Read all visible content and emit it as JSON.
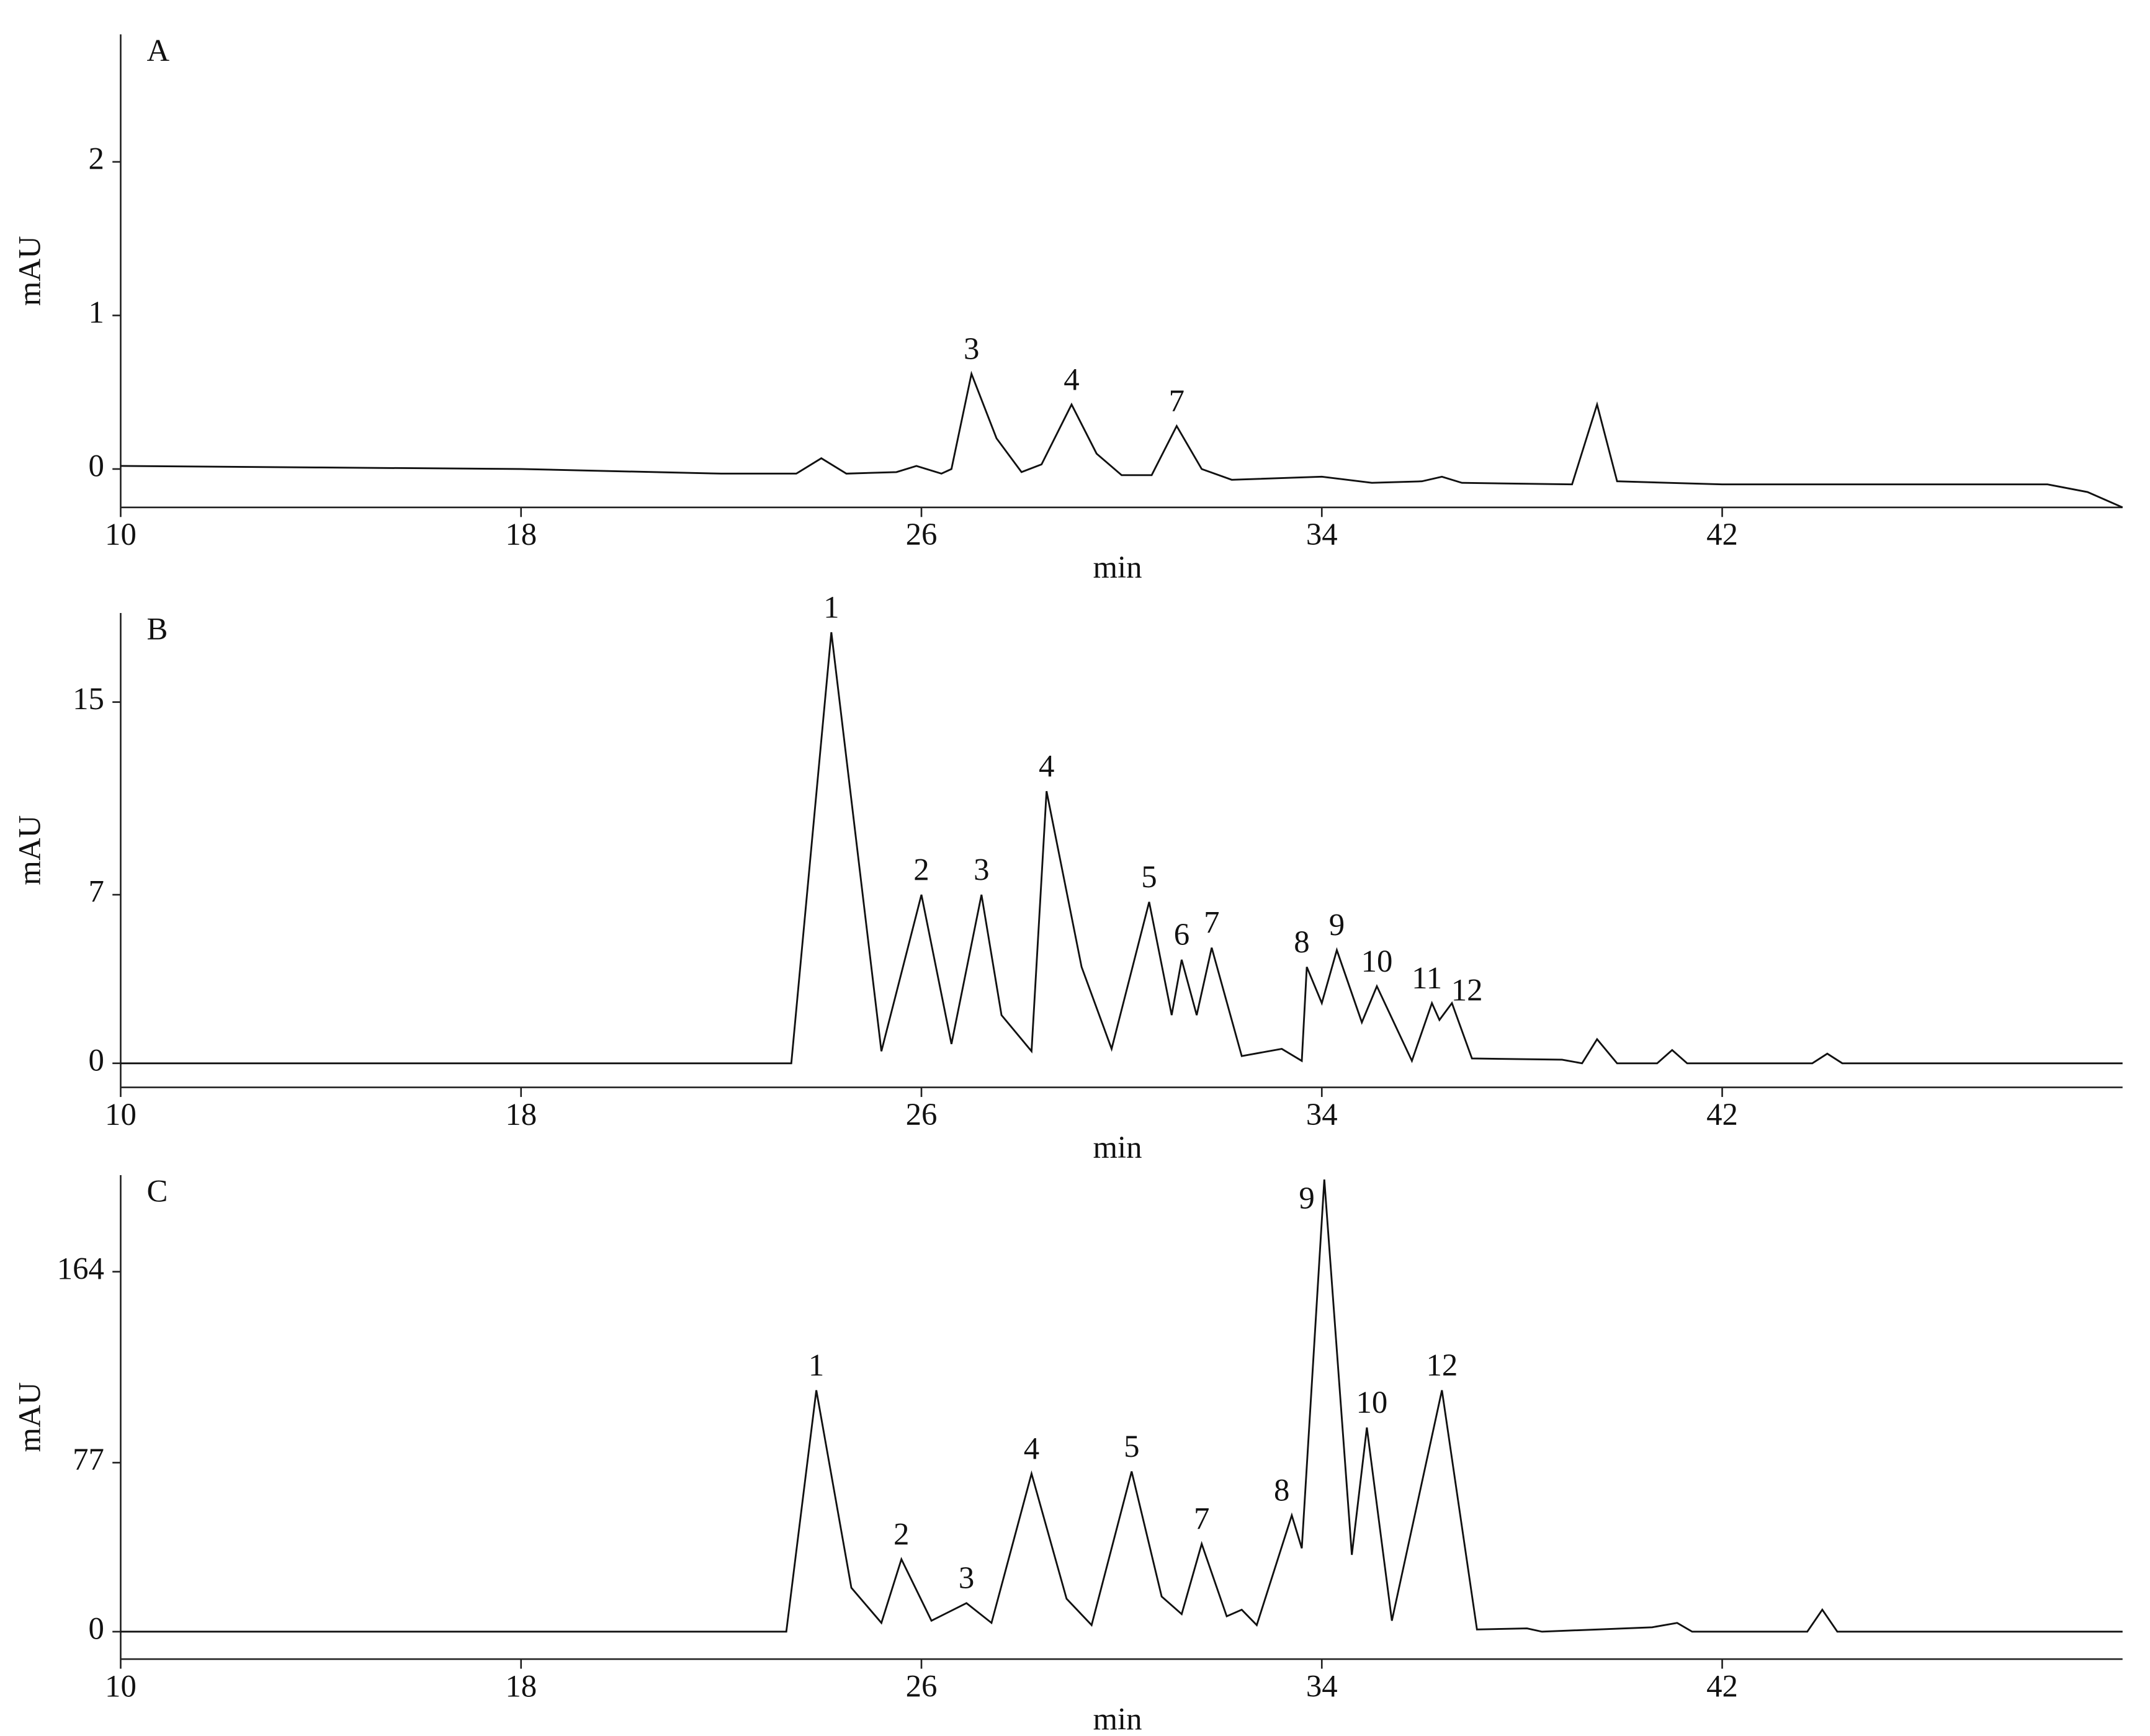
{
  "chart_data": [
    {
      "type": "line",
      "title": "A",
      "x_label": "min",
      "y_label": "mAU",
      "color": "#111111",
      "xlim": [
        10,
        50
      ],
      "xticks": [
        10,
        18,
        26,
        34,
        42
      ],
      "ylim": [
        -0.25,
        2.83
      ],
      "yticks": [
        0,
        1,
        2
      ],
      "x": [
        10,
        14,
        18,
        22,
        23.5,
        24.0,
        24.5,
        25.5,
        25.9,
        26.4,
        26.6,
        27.0,
        27.5,
        28.0,
        28.4,
        29.0,
        29.5,
        30.0,
        30.6,
        31.1,
        31.6,
        32.2,
        34.0,
        35.0,
        36.0,
        36.4,
        36.8,
        39.0,
        39.5,
        39.9,
        42,
        46,
        48.5,
        49.3,
        50
      ],
      "values": [
        0.02,
        0.01,
        0.0,
        -0.03,
        -0.03,
        0.07,
        -0.03,
        -0.02,
        0.02,
        -0.03,
        0.0,
        0.62,
        0.2,
        -0.02,
        0.03,
        0.42,
        0.1,
        -0.04,
        -0.04,
        0.28,
        0.0,
        -0.07,
        -0.05,
        -0.09,
        -0.08,
        -0.05,
        -0.09,
        -0.1,
        0.42,
        -0.08,
        -0.1,
        -0.1,
        -0.1,
        -0.15,
        -0.25
      ],
      "annotations": [
        {
          "text": "3",
          "x": 27.0,
          "y": 0.62
        },
        {
          "text": "4",
          "x": 29.0,
          "y": 0.42
        },
        {
          "text": "7",
          "x": 31.1,
          "y": 0.28
        }
      ]
    },
    {
      "type": "line",
      "title": "B",
      "x_label": "min",
      "y_label": "mAU",
      "color": "#111111",
      "xlim": [
        10,
        50
      ],
      "xticks": [
        10,
        18,
        26,
        34,
        42
      ],
      "ylim": [
        -1,
        18.7
      ],
      "yticks": [
        0,
        7,
        15
      ],
      "x": [
        10,
        18,
        23.4,
        24.2,
        25.2,
        26.0,
        26.6,
        27.2,
        27.6,
        28.2,
        28.5,
        29.2,
        29.8,
        30.55,
        31.0,
        31.2,
        31.5,
        31.8,
        32.4,
        33.2,
        33.6,
        33.7,
        34.0,
        34.3,
        34.8,
        35.1,
        35.8,
        36.2,
        36.35,
        36.6,
        37.0,
        38.8,
        39.2,
        39.5,
        39.9,
        40.7,
        41.0,
        41.3,
        43.8,
        44.1,
        44.4,
        50
      ],
      "values": [
        0,
        0,
        0,
        17.9,
        0.5,
        7.0,
        0.8,
        7.0,
        2.0,
        0.5,
        11.3,
        4.0,
        0.6,
        6.7,
        2.0,
        4.3,
        2.0,
        4.8,
        0.3,
        0.6,
        0.1,
        4.0,
        2.5,
        4.7,
        1.7,
        3.2,
        0.1,
        2.5,
        1.8,
        2.5,
        0.2,
        0.15,
        0.0,
        1.0,
        0.0,
        0.0,
        0.55,
        0.0,
        0.0,
        0.4,
        0.0,
        0
      ],
      "annotations": [
        {
          "text": "1",
          "x": 24.2,
          "y": 17.9
        },
        {
          "text": "2",
          "x": 26.0,
          "y": 7.0
        },
        {
          "text": "3",
          "x": 27.2,
          "y": 7.0
        },
        {
          "text": "4",
          "x": 28.5,
          "y": 11.3
        },
        {
          "text": "5",
          "x": 30.55,
          "y": 6.7
        },
        {
          "text": "6",
          "x": 31.2,
          "y": 4.3
        },
        {
          "text": "7",
          "x": 31.8,
          "y": 4.8
        },
        {
          "text": "8",
          "x": 33.6,
          "y": 4.0
        },
        {
          "text": "9",
          "x": 34.3,
          "y": 4.7
        },
        {
          "text": "10",
          "x": 35.1,
          "y": 3.2
        },
        {
          "text": "11",
          "x": 36.1,
          "y": 2.5
        },
        {
          "text": "12",
          "x": 36.9,
          "y": 2.0
        }
      ]
    },
    {
      "type": "line",
      "title": "C",
      "x_label": "min",
      "y_label": "mAU",
      "color": "#111111",
      "xlim": [
        10,
        50
      ],
      "xticks": [
        10,
        18,
        26,
        34,
        42
      ],
      "ylim": [
        -12.5,
        208
      ],
      "yticks": [
        0,
        77,
        164
      ],
      "x": [
        10,
        18,
        23.3,
        23.9,
        24.6,
        25.2,
        25.6,
        26.2,
        26.9,
        27.4,
        28.2,
        28.9,
        29.4,
        30.2,
        30.8,
        31.2,
        31.6,
        32.1,
        32.4,
        32.7,
        33.4,
        33.6,
        34.05,
        34.6,
        34.9,
        35.4,
        36.4,
        37.1,
        38.1,
        38.4,
        40.6,
        41.1,
        41.4,
        43.7,
        44.0,
        44.3,
        50
      ],
      "values": [
        0,
        0,
        0,
        110,
        20,
        4,
        33,
        5,
        13,
        4,
        72,
        15,
        3,
        73,
        16,
        8,
        40,
        7,
        10,
        3,
        53,
        38,
        206,
        35,
        93,
        5,
        110,
        1,
        1.5,
        0,
        2,
        4,
        0,
        0,
        10,
        0,
        0
      ],
      "annotations": [
        {
          "text": "1",
          "x": 23.9,
          "y": 110
        },
        {
          "text": "2",
          "x": 25.6,
          "y": 33
        },
        {
          "text": "3",
          "x": 26.9,
          "y": 13
        },
        {
          "text": "4",
          "x": 28.2,
          "y": 72
        },
        {
          "text": "5",
          "x": 30.2,
          "y": 73
        },
        {
          "text": "7",
          "x": 31.6,
          "y": 40
        },
        {
          "text": "8",
          "x": 33.2,
          "y": 53
        },
        {
          "text": "9",
          "x": 33.7,
          "y": 186
        },
        {
          "text": "10",
          "x": 35.0,
          "y": 93
        },
        {
          "text": "12",
          "x": 36.4,
          "y": 110
        }
      ]
    }
  ]
}
